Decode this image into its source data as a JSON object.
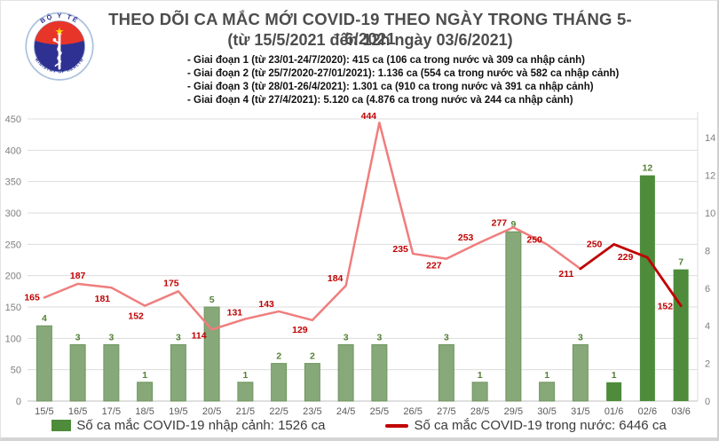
{
  "header": {
    "title_line1": "THEO DÕI CA MẮC MỚI COVID-19 THEO NGÀY TRONG THÁNG 5-6/2021",
    "title_line2": "(từ 15/5/2021 đến 12h ngày 03/6/2021)",
    "bullets": [
      "- Giai đoạn 1 (từ 23/01-24/7/2020): 415 ca (106 ca trong nước và 309 ca nhập cảnh)",
      "- Giai đoạn 2 (từ 25/7/2020-27/01/2021): 1.136 ca (554 ca trong nước và 582 ca nhập cảnh)",
      "- Giai đoạn 3 (từ 28/01-26/4/2021): 1.301 ca (910 ca trong nước và 391 ca nhập cảnh)",
      "- Giai đoạn 4 (từ 27/4/2021): 5.120 ca (4.876 ca trong nước và 244 ca nhập cảnh)"
    ]
  },
  "logo": {
    "top_text": "BỘ Y TẾ",
    "bottom_text": "MINISTRY OF HEALTH"
  },
  "chart_data": {
    "type": "bar+line combo",
    "categories": [
      "15/5",
      "16/5",
      "17/5",
      "18/5",
      "19/5",
      "20/5",
      "21/5",
      "22/5",
      "23/5",
      "24/5",
      "25/5",
      "26/5",
      "27/5",
      "28/5",
      "29/5",
      "30/5",
      "31/5",
      "01/6",
      "02/6",
      "03/6"
    ],
    "series": [
      {
        "name": "Số ca mắc COVID-19 nhập cảnh",
        "type": "bar",
        "axis": "right",
        "values": [
          4,
          3,
          3,
          1,
          3,
          5,
          1,
          2,
          2,
          3,
          3,
          0,
          3,
          1,
          9,
          1,
          3,
          1,
          12,
          7
        ],
        "recent_from_index": 17,
        "colors": {
          "default": "#87a878",
          "edge": "#6f9560",
          "recent": "#4e8b3b"
        }
      },
      {
        "name": "Số ca mắc COVID-19 trong nước",
        "type": "line",
        "axis": "left",
        "values": [
          165,
          187,
          181,
          152,
          175,
          114,
          131,
          143,
          129,
          184,
          444,
          235,
          227,
          253,
          277,
          250,
          211,
          250,
          229,
          152
        ],
        "recent_from_index": 16,
        "colors": {
          "default": "#f07d7d",
          "recent": "#c00000"
        }
      }
    ],
    "left_axis": {
      "min": 0,
      "max": 450,
      "step": 50
    },
    "right_axis": {
      "min": 0,
      "max": 15,
      "label_step": 2,
      "max_label": 14
    },
    "grid": "horizontal",
    "legend_position": "bottom",
    "label_colors": {
      "bar_labels": "#538135",
      "line_labels": "#c00000"
    }
  },
  "legend": {
    "bar_label": "Số ca mắc COVID-19 nhập cảnh: 1526 ca",
    "line_label": "Số ca mắc COVID-19 trong nước: 6446 ca"
  }
}
